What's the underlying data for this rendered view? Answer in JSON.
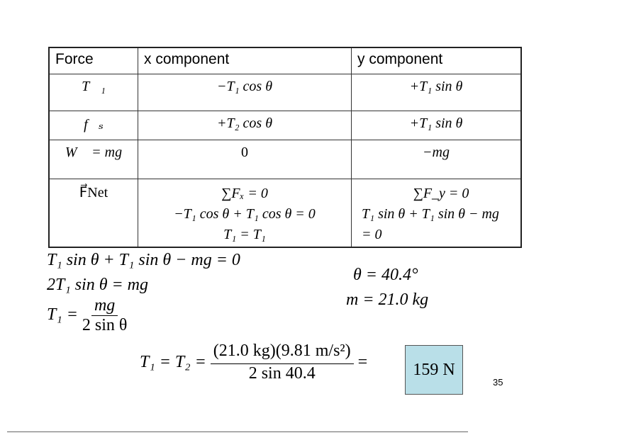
{
  "table": {
    "headers": [
      "Force",
      "x component",
      "y component"
    ],
    "rows": [
      {
        "force": "T⃗₁",
        "x": "−T₁ cos θ",
        "y": "+T₁ sin θ"
      },
      {
        "force": "f⃗ₛ",
        "x": "+T₂ cos θ",
        "y": "+T₁ sin θ"
      },
      {
        "force": "W⃗ = mg",
        "x": "0",
        "y": "−mg"
      },
      {
        "force": "F⃗Net",
        "x": [
          "∑Fₓ = 0",
          "−T₁ cos θ + T₁ cos θ = 0",
          "T₁ = T₁"
        ],
        "y": [
          "∑F_y = 0",
          "T₁ sin θ + T₁ sin θ − mg",
          "= 0"
        ]
      }
    ]
  },
  "equations": {
    "line1": "T₁ sin θ + T₁ sin θ − mg = 0",
    "line2": "2T₁ sin θ = mg",
    "line3_lhs": "T₁ =",
    "line3_num": "mg",
    "line3_den": "2 sin θ",
    "given_theta": "θ = 40.4°",
    "given_mass": "m = 21.0 kg",
    "final_lhs": "T₁ = T₂ =",
    "final_num": "(21.0 kg)(9.81 m/s²)",
    "final_den": "2 sin 40.4",
    "final_eq": "=",
    "answer": "159 N"
  },
  "page_number": "35",
  "colors": {
    "answer_box": "#b9dfe8"
  }
}
